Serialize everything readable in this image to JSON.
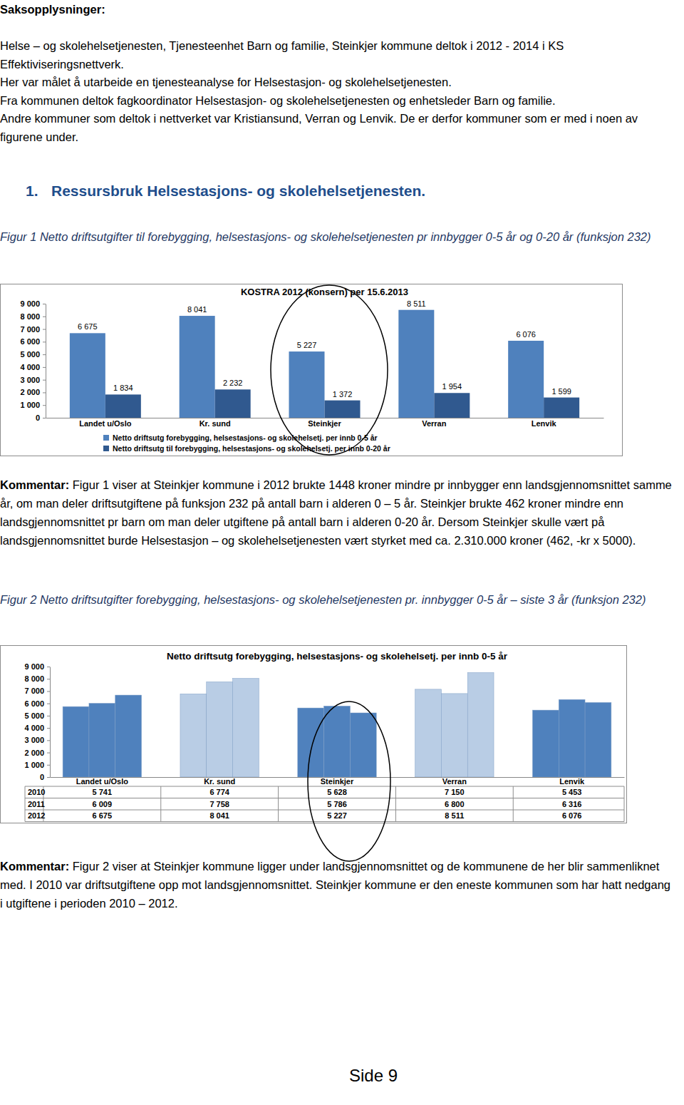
{
  "page": {
    "label": "Saksopplysninger:",
    "intro": [
      "Helse – og skolehelsetjenesten, Tjenesteenhet Barn og familie, Steinkjer kommune deltok i 2012 - 2014 i KS Effektiviseringsnettverk.",
      "Her var målet å utarbeide en tjenesteanalyse for Helsestasjon- og skolehelsetjenesten.",
      "Fra kommunen deltok fagkoordinator Helsestasjon- og skolehelsetjenesten og enhetsleder Barn og familie.",
      "Andre kommuner som deltok i nettverket var Kristiansund, Verran og Lenvik. De er derfor kommuner som er med i noen av figurene under."
    ],
    "section_number": "1.",
    "section_title": "Ressursbruk Helsestasjons- og skolehelsetjenesten.",
    "figures": [
      {
        "caption": "Figur 1 Netto driftsutgifter til forebygging, helsestasjons- og skolehelsetjenesten pr innbygger 0-5 år og 0-20 år (funksjon 232)",
        "comment_label": "Kommentar:",
        "comment": "Figur 1 viser at Steinkjer kommune i 2012 brukte 1448 kroner mindre pr innbygger enn landsgjennomsnittet samme år, om man deler driftsutgiftene på funksjon 232 på antall barn i alderen 0 – 5 år. Steinkjer brukte 462 kroner mindre enn landsgjennomsnittet pr barn om man deler utgiftene på antall barn i alderen 0-20 år. Dersom Steinkjer skulle vært på landsgjennomsnittet burde Helsestasjon – og skolehelsetjenesten vært styrket med ca. 2.310.000 kroner (462, -kr x 5000)."
      },
      {
        "caption": "Figur 2 Netto driftsutgifter forebygging, helsestasjons- og skolehelsetjenesten pr. innbygger 0-5 år – siste 3 år (funksjon 232)",
        "comment_label": "Kommentar:",
        "comment": "Figur 2 viser at Steinkjer kommune ligger under landsgjennomsnittet og de kommunene de her blir sammenliknet med. I 2010 var driftsutgiftene opp mot landsgjennomsnittet. Steinkjer kommune er den eneste kommunen som har hatt nedgang i utgiftene i perioden 2010 – 2012."
      }
    ],
    "footer": "Side 9"
  },
  "chart_data": [
    {
      "type": "bar",
      "title": "KOSTRA 2012 (konsern) per 15.6.2013",
      "categories": [
        "Landet u/Oslo",
        "Kr. sund",
        "Steinkjer",
        "Verran",
        "Lenvik"
      ],
      "series": [
        {
          "name": "Netto driftsutg forebygging, helsestasjons- og skolehelsetj. per innb 0-5 år",
          "color": "#4f81bd",
          "values": [
            6675,
            8041,
            5227,
            8511,
            6076
          ],
          "value_labels": [
            "6 675",
            "8 041",
            "5 227",
            "8 511",
            "6 076"
          ]
        },
        {
          "name": "Netto driftsutg til forebygging, helsestasjons- og skolehelsetj. per innb 0-20 år",
          "color": "#30598f",
          "values": [
            1834,
            2232,
            1372,
            1954,
            1599
          ],
          "value_labels": [
            "1 834",
            "2 232",
            "1 372",
            "1 954",
            "1 599"
          ]
        }
      ],
      "ylim": [
        0,
        9000
      ],
      "yticks": [
        0,
        {
          "value": 1000,
          "label": "1 000"
        },
        {
          "value": 2000,
          "label": "2 000"
        },
        {
          "value": 3000,
          "label": "3 000"
        },
        {
          "value": 4000,
          "label": "4 000"
        },
        {
          "value": 5000,
          "label": "5 000"
        },
        {
          "value": 6000,
          "label": "6 000"
        },
        {
          "value": 7000,
          "label": "7 000"
        },
        {
          "value": 8000,
          "label": "8 000"
        },
        {
          "value": 9000,
          "label": "9 000"
        }
      ],
      "grid": false,
      "data_labels": true,
      "legend": "bottom"
    },
    {
      "type": "bar",
      "title": "Netto driftsutg forebygging, helsestasjons- og skolehelsetj. per innb 0-5 år",
      "categories": [
        "Landet u/Oslo",
        "Kr. sund",
        "Steinkjer",
        "Verran",
        "Lenvik"
      ],
      "series": [
        {
          "name": "2010",
          "colors": [
            "#4f81bd",
            "#b9cde5",
            "#4f81bd",
            "#b9cde5",
            "#4f81bd"
          ],
          "values": [
            5741,
            6774,
            5628,
            7150,
            5453
          ],
          "value_labels": [
            "5 741",
            "6 774",
            "5 628",
            "7 150",
            "5 453"
          ]
        },
        {
          "name": "2011",
          "colors": [
            "#4f81bd",
            "#b9cde5",
            "#4f81bd",
            "#b9cde5",
            "#4f81bd"
          ],
          "values": [
            6009,
            7758,
            5786,
            6800,
            6316
          ],
          "value_labels": [
            "6 009",
            "7 758",
            "5 786",
            "6 800",
            "6 316"
          ]
        },
        {
          "name": "2012",
          "colors": [
            "#4f81bd",
            "#b9cde5",
            "#4f81bd",
            "#b9cde5",
            "#4f81bd"
          ],
          "values": [
            6675,
            8041,
            5227,
            8511,
            6076
          ],
          "value_labels": [
            "6 675",
            "8 041",
            "5 227",
            "8 511",
            "6 076"
          ]
        }
      ],
      "ylim": [
        0,
        9000
      ],
      "yticks": [
        0,
        {
          "value": 1000,
          "label": "1 000"
        },
        {
          "value": 2000,
          "label": "2 000"
        },
        {
          "value": 3000,
          "label": "3 000"
        },
        {
          "value": 4000,
          "label": "4 000"
        },
        {
          "value": 5000,
          "label": "5 000"
        },
        {
          "value": 6000,
          "label": "6 000"
        },
        {
          "value": 7000,
          "label": "7 000"
        },
        {
          "value": 8000,
          "label": "8 000"
        },
        {
          "value": 9000,
          "label": "9 000"
        }
      ],
      "grid": false
    }
  ]
}
